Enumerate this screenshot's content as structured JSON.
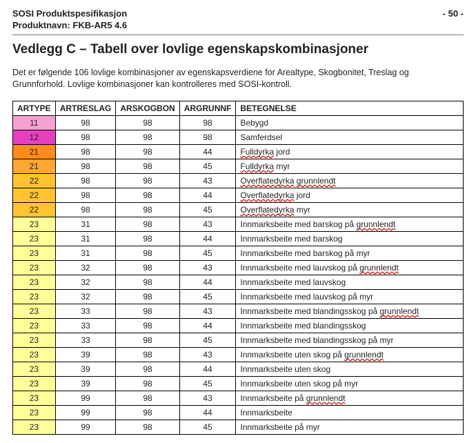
{
  "header": {
    "line1": "SOSI Produktspesifikasjon",
    "line2": "Produktnavn: FKB-AR5 4.6",
    "page": "- 50 -"
  },
  "title": "Vedlegg C – Tabell over lovlige egenskapskombinasjoner",
  "intro": "Det er følgende 106 lovlige kombinasjoner av egenskapsverdiene for Arealtype, Skogbonitet, Treslag og Grunnforhold. Lovlige kombinasjoner kan kontrolleres med SOSI-kontroll.",
  "columns": [
    "ARTYPE",
    "ARTRESLAG",
    "ARSKOGBON",
    "ARGRUNNF",
    "BETEGNELSE"
  ],
  "row_colors": {
    "11": "#f7a1d2",
    "12": "#e83fbf",
    "21a": "#ff8c1a",
    "21b": "#ffa733",
    "22": "#ffc233",
    "23": "#ffff99"
  },
  "rows": [
    {
      "artype": "11",
      "color": "11",
      "artreslag": "98",
      "arskogbon": "98",
      "argrunnf": "98",
      "betegnelse": "Bebygd",
      "spell": []
    },
    {
      "artype": "12",
      "color": "12",
      "artreslag": "98",
      "arskogbon": "98",
      "argrunnf": "98",
      "betegnelse": "Samferdsel",
      "spell": []
    },
    {
      "artype": "21",
      "color": "21a",
      "artreslag": "98",
      "arskogbon": "98",
      "argrunnf": "44",
      "betegnelse": "Fulldyrka jord",
      "spell": [
        "Fulldyrka"
      ]
    },
    {
      "artype": "21",
      "color": "21b",
      "artreslag": "98",
      "arskogbon": "98",
      "argrunnf": "45",
      "betegnelse": "Fulldyrka myr",
      "spell": [
        "Fulldyrka"
      ]
    },
    {
      "artype": "22",
      "color": "22",
      "artreslag": "98",
      "arskogbon": "98",
      "argrunnf": "43",
      "betegnelse": "Overflatedyrka grunnlendt",
      "spell": [
        "Overflatedyrka",
        "grunnlendt"
      ]
    },
    {
      "artype": "22",
      "color": "22",
      "artreslag": "98",
      "arskogbon": "98",
      "argrunnf": "44",
      "betegnelse": "Overflatedyrka jord",
      "spell": [
        "Overflatedyrka"
      ]
    },
    {
      "artype": "22",
      "color": "22",
      "artreslag": "98",
      "arskogbon": "98",
      "argrunnf": "45",
      "betegnelse": "Overflatedyrka myr",
      "spell": [
        "Overflatedyrka"
      ]
    },
    {
      "artype": "23",
      "color": "23",
      "artreslag": "31",
      "arskogbon": "98",
      "argrunnf": "43",
      "betegnelse": "Innmarksbeite med barskog på grunnlendt",
      "spell": [
        "grunnlendt"
      ]
    },
    {
      "artype": "23",
      "color": "23",
      "artreslag": "31",
      "arskogbon": "98",
      "argrunnf": "44",
      "betegnelse": "Innmarksbeite med barskog",
      "spell": []
    },
    {
      "artype": "23",
      "color": "23",
      "artreslag": "31",
      "arskogbon": "98",
      "argrunnf": "45",
      "betegnelse": "Innmarksbeite med barskog på myr",
      "spell": []
    },
    {
      "artype": "23",
      "color": "23",
      "artreslag": "32",
      "arskogbon": "98",
      "argrunnf": "43",
      "betegnelse": "Innmarksbeite med lauvskog på grunnlendt",
      "spell": [
        "grunnlendt"
      ]
    },
    {
      "artype": "23",
      "color": "23",
      "artreslag": "32",
      "arskogbon": "98",
      "argrunnf": "44",
      "betegnelse": "Innmarksbeite med lauvskog",
      "spell": []
    },
    {
      "artype": "23",
      "color": "23",
      "artreslag": "32",
      "arskogbon": "98",
      "argrunnf": "45",
      "betegnelse": "Innmarksbeite med lauvskog på myr",
      "spell": []
    },
    {
      "artype": "23",
      "color": "23",
      "artreslag": "33",
      "arskogbon": "98",
      "argrunnf": "43",
      "betegnelse": "Innmarksbeite med blandingsskog på grunnlendt",
      "spell": [
        "grunnlendt"
      ]
    },
    {
      "artype": "23",
      "color": "23",
      "artreslag": "33",
      "arskogbon": "98",
      "argrunnf": "44",
      "betegnelse": "Innmarksbeite med blandingsskog",
      "spell": []
    },
    {
      "artype": "23",
      "color": "23",
      "artreslag": "33",
      "arskogbon": "98",
      "argrunnf": "45",
      "betegnelse": "Innmarksbeite med blandingsskog på myr",
      "spell": []
    },
    {
      "artype": "23",
      "color": "23",
      "artreslag": "39",
      "arskogbon": "98",
      "argrunnf": "43",
      "betegnelse": "Innmarksbeite uten skog på grunnlendt",
      "spell": [
        "grunnlendt"
      ]
    },
    {
      "artype": "23",
      "color": "23",
      "artreslag": "39",
      "arskogbon": "98",
      "argrunnf": "44",
      "betegnelse": "Innmarksbeite uten skog",
      "spell": []
    },
    {
      "artype": "23",
      "color": "23",
      "artreslag": "39",
      "arskogbon": "98",
      "argrunnf": "45",
      "betegnelse": "Innmarksbeite uten skog på myr",
      "spell": []
    },
    {
      "artype": "23",
      "color": "23",
      "artreslag": "99",
      "arskogbon": "98",
      "argrunnf": "43",
      "betegnelse": "Innmarksbeite på grunnlendt",
      "spell": [
        "grunnlendt"
      ]
    },
    {
      "artype": "23",
      "color": "23",
      "artreslag": "99",
      "arskogbon": "98",
      "argrunnf": "44",
      "betegnelse": "Innmarksbeite",
      "spell": []
    },
    {
      "artype": "23",
      "color": "23",
      "artreslag": "99",
      "arskogbon": "98",
      "argrunnf": "45",
      "betegnelse": "Innmarksbeite på myr",
      "spell": []
    }
  ]
}
